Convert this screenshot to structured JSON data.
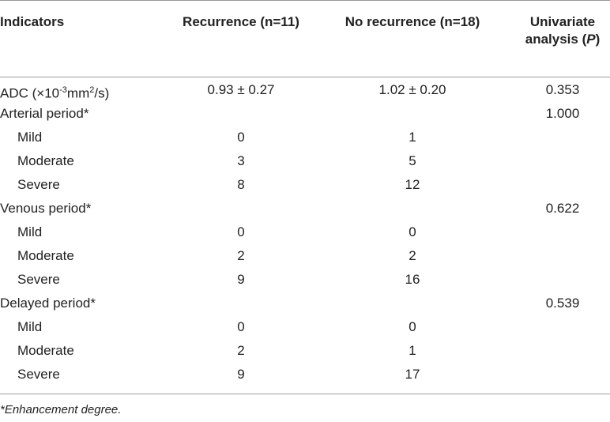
{
  "table": {
    "header": [
      "Indicators",
      "Recurrence (n=11)",
      "No recurrence (n=18)",
      [
        {
          "text": "Univariate"
        },
        {
          "text": "analysis (",
          "style": "br"
        },
        {
          "text": "P",
          "style": "i"
        },
        {
          "text": ")"
        }
      ]
    ],
    "rows": [
      {
        "label": [
          {
            "text": "ADC (×10"
          },
          {
            "text": "-3",
            "style": "sup"
          },
          {
            "text": "mm"
          },
          {
            "text": "2",
            "style": "sup"
          },
          {
            "text": "/s)"
          }
        ],
        "cells": [
          "0.93 ± 0.27",
          "1.02 ± 0.20",
          "0.353"
        ]
      },
      {
        "label": "Arterial period*",
        "cells": [
          null,
          null,
          "1.000"
        ]
      },
      {
        "label": "Mild",
        "level": 1,
        "cells": [
          "0",
          "1",
          null
        ]
      },
      {
        "label": "Moderate",
        "level": 1,
        "cells": [
          "3",
          "5",
          null
        ]
      },
      {
        "label": "Severe",
        "level": 1,
        "cells": [
          "8",
          "12",
          null
        ]
      },
      {
        "label": "Venous period*",
        "cells": [
          null,
          null,
          "0.622"
        ]
      },
      {
        "label": "Mild",
        "level": 1,
        "cells": [
          "0",
          "0",
          null
        ]
      },
      {
        "label": "Moderate",
        "level": 1,
        "cells": [
          "2",
          "2",
          null
        ]
      },
      {
        "label": "Severe",
        "level": 1,
        "cells": [
          "9",
          "16",
          null
        ]
      },
      {
        "label": "Delayed period*",
        "cells": [
          null,
          null,
          "0.539"
        ]
      },
      {
        "label": "Mild",
        "level": 1,
        "cells": [
          "0",
          "0",
          null
        ]
      },
      {
        "label": "Moderate",
        "level": 1,
        "cells": [
          "2",
          "1",
          null
        ]
      },
      {
        "label": "Severe",
        "level": 1,
        "cells": [
          "9",
          "17",
          null
        ]
      }
    ]
  },
  "footnote": "*Enhancement degree."
}
